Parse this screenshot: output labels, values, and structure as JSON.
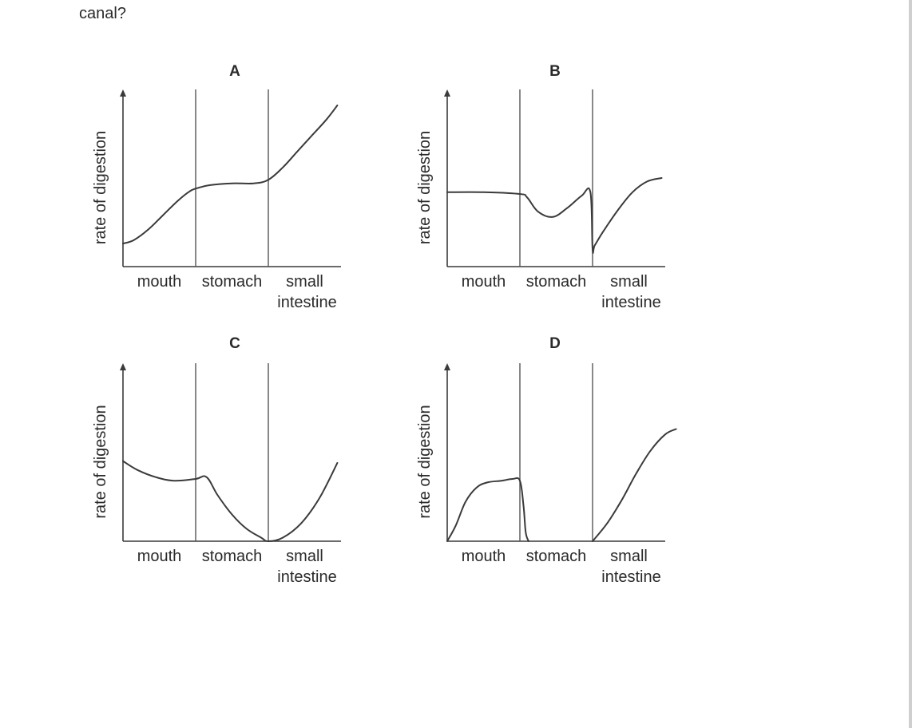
{
  "question": {
    "tail_text": "canal?"
  },
  "colors": {
    "curve": "#3a3a3a",
    "axis": "#3a3a3a",
    "text": "#2a2a2a"
  },
  "chart_data": [
    {
      "type": "line",
      "panel": "A",
      "ylabel": "rate of digestion",
      "regions": [
        "mouth",
        "stomach",
        "small intestine"
      ],
      "xlim": [
        0,
        3
      ],
      "ylim": [
        0,
        1
      ],
      "x": [
        0,
        0.15,
        0.35,
        0.55,
        0.75,
        0.9,
        1.0,
        1.2,
        1.5,
        1.8,
        2.0,
        2.2,
        2.4,
        2.6,
        2.8,
        2.95
      ],
      "values": [
        0.13,
        0.15,
        0.21,
        0.29,
        0.37,
        0.42,
        0.44,
        0.46,
        0.47,
        0.47,
        0.49,
        0.56,
        0.65,
        0.74,
        0.83,
        0.91
      ]
    },
    {
      "type": "line",
      "panel": "B",
      "ylabel": "rate of digestion",
      "regions": [
        "mouth",
        "stomach",
        "small intestine"
      ],
      "xlim": [
        0,
        3
      ],
      "ylim": [
        0,
        1
      ],
      "x": [
        0,
        0.5,
        1.0,
        1.1,
        1.25,
        1.45,
        1.65,
        1.85,
        1.97,
        2.0,
        2.03,
        2.15,
        2.35,
        2.55,
        2.75,
        2.95
      ],
      "values": [
        0.42,
        0.42,
        0.41,
        0.39,
        0.31,
        0.28,
        0.33,
        0.4,
        0.42,
        0.1,
        0.12,
        0.2,
        0.32,
        0.42,
        0.48,
        0.5
      ]
    },
    {
      "type": "line",
      "panel": "C",
      "ylabel": "rate of digestion",
      "regions": [
        "mouth",
        "stomach",
        "small intestine"
      ],
      "xlim": [
        0,
        3
      ],
      "ylim": [
        0,
        1
      ],
      "x": [
        0,
        0.2,
        0.45,
        0.7,
        1.0,
        1.15,
        1.3,
        1.5,
        1.7,
        1.9,
        2.0,
        2.2,
        2.45,
        2.7,
        2.95
      ],
      "values": [
        0.45,
        0.4,
        0.36,
        0.34,
        0.35,
        0.36,
        0.26,
        0.15,
        0.07,
        0.02,
        0.0,
        0.02,
        0.1,
        0.24,
        0.44
      ]
    },
    {
      "type": "line",
      "panel": "D",
      "ylabel": "rate of digestion",
      "regions": [
        "mouth",
        "stomach",
        "small intestine"
      ],
      "xlim": [
        0,
        3
      ],
      "ylim": [
        0,
        1
      ],
      "segments": [
        {
          "x": [
            0,
            0.12,
            0.25,
            0.4,
            0.55,
            0.75,
            0.9,
            1.0,
            1.05,
            1.08,
            1.12
          ],
          "values": [
            0.0,
            0.09,
            0.22,
            0.3,
            0.33,
            0.34,
            0.35,
            0.34,
            0.2,
            0.05,
            0.0
          ]
        },
        {
          "x": [
            2.0,
            2.2,
            2.4,
            2.6,
            2.8,
            3.0,
            3.15
          ],
          "values": [
            0.0,
            0.1,
            0.23,
            0.38,
            0.51,
            0.6,
            0.63
          ]
        }
      ]
    }
  ]
}
